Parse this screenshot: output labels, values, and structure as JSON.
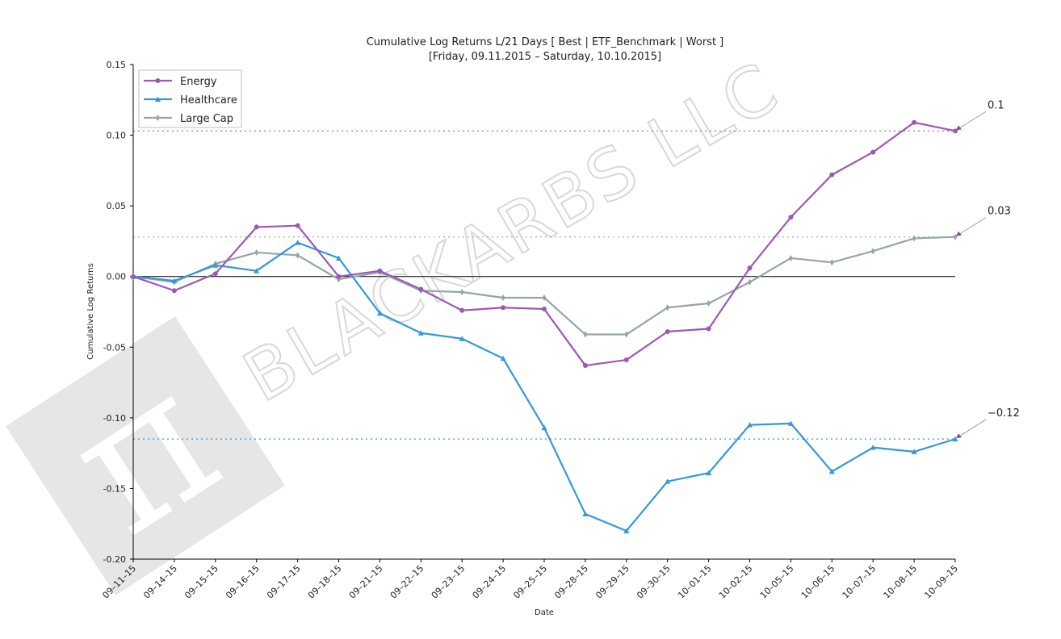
{
  "chart_data": {
    "type": "line",
    "title": "Cumulative Log Returns L/21 Days [ Best | ETF_Benchmark | Worst ]",
    "subtitle": "[Friday, 09.11.2015 – Saturday, 10.10.2015]",
    "xlabel": "Date",
    "ylabel": "Cumulative Log Returns",
    "ylim": [
      -0.2,
      0.15
    ],
    "y_ticks": [
      "0.15",
      "0.10",
      "0.05",
      "0.00",
      "-0.05",
      "-0.10",
      "-0.15",
      "-0.20"
    ],
    "y_tick_values": [
      0.15,
      0.1,
      0.05,
      0.0,
      -0.05,
      -0.1,
      -0.15,
      -0.2
    ],
    "categories": [
      "09-11-15",
      "09-14-15",
      "09-15-15",
      "09-16-15",
      "09-17-15",
      "09-18-15",
      "09-21-15",
      "09-22-15",
      "09-23-15",
      "09-24-15",
      "09-25-15",
      "09-28-15",
      "09-29-15",
      "09-30-15",
      "10-01-15",
      "10-02-15",
      "10-05-15",
      "10-06-15",
      "10-07-15",
      "10-08-15",
      "10-09-15"
    ],
    "tick_labels": [
      "09–11–15",
      "09–14–15",
      "09–15–15",
      "09–16–15",
      "09–17–15",
      "09–18–15",
      "09–21–15",
      "09–22–15",
      "09–23–15",
      "09–24–15",
      "09–25–15",
      "09–28–15",
      "09–29–15",
      "09–30–15",
      "10–01–15",
      "10–02–15",
      "10–05–15",
      "10–06–15",
      "10–07–15",
      "10–08–15",
      "10–09–15"
    ],
    "series": [
      {
        "name": "Energy",
        "color": "#9b59b6",
        "marker": "circle",
        "values": [
          0.0,
          -0.01,
          0.002,
          0.035,
          0.036,
          0.0,
          0.004,
          -0.009,
          -0.024,
          -0.022,
          -0.023,
          -0.063,
          -0.059,
          -0.039,
          -0.037,
          0.006,
          0.042,
          0.072,
          0.088,
          0.109,
          0.103
        ],
        "final_label": "0.1"
      },
      {
        "name": "Healthcare",
        "color": "#3498db",
        "marker": "triangle",
        "values": [
          0.0,
          -0.003,
          0.008,
          0.004,
          0.024,
          0.013,
          -0.026,
          -0.04,
          -0.044,
          -0.058,
          -0.107,
          -0.168,
          -0.18,
          -0.145,
          -0.139,
          -0.105,
          -0.104,
          -0.138,
          -0.121,
          -0.124,
          -0.115
        ],
        "final_label": "−0.12"
      },
      {
        "name": "Large Cap",
        "color": "#95a5a6",
        "marker": "diamond",
        "values": [
          0.0,
          -0.004,
          0.009,
          0.017,
          0.015,
          -0.002,
          0.003,
          -0.01,
          -0.011,
          -0.015,
          -0.015,
          -0.041,
          -0.041,
          -0.022,
          -0.019,
          -0.004,
          0.013,
          0.01,
          0.018,
          0.027,
          0.028
        ],
        "final_label": "0.03"
      }
    ],
    "grid": false,
    "legend": "top-left",
    "zero_line_color": "#000000"
  },
  "watermark": {
    "text": "BLACKARBS LLC",
    "logo_glyph": "π",
    "logo_color": "#dcdcdc"
  }
}
